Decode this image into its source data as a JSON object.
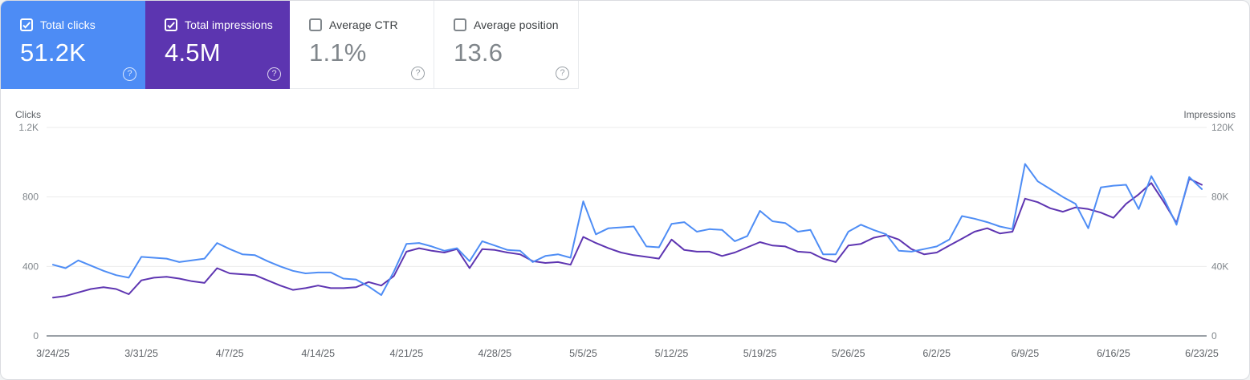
{
  "help_glyph": "?",
  "cards": [
    {
      "label": "Total clicks",
      "value": "51.2K",
      "selected": true,
      "color": "#4d8cf5"
    },
    {
      "label": "Total impressions",
      "value": "4.5M",
      "selected": true,
      "color": "#5c35b0"
    },
    {
      "label": "Average CTR",
      "value": "1.1%",
      "selected": false,
      "color": "#ffffff"
    },
    {
      "label": "Average position",
      "value": "13.6",
      "selected": false,
      "color": "#ffffff"
    }
  ],
  "chart_data": {
    "type": "line",
    "x_start": "3/24/25",
    "x_end": "6/23/25",
    "x_step": "1 day",
    "x_tick_labels": [
      "3/24/25",
      "3/31/25",
      "4/7/25",
      "4/14/25",
      "4/21/25",
      "4/28/25",
      "5/5/25",
      "5/12/25",
      "5/19/25",
      "5/26/25",
      "6/2/25",
      "6/9/25",
      "6/16/25",
      "6/23/25"
    ],
    "left_axis": {
      "title": "Clicks",
      "tick_labels": [
        "0",
        "400",
        "800",
        "1.2K"
      ],
      "max": 1200
    },
    "right_axis": {
      "title": "Impressions",
      "tick_labels": [
        "0",
        "40K",
        "80K",
        "120K"
      ],
      "max": 120000
    },
    "grid": "horizontal-only",
    "legend": "none",
    "series": [
      {
        "name": "Total clicks",
        "axis": "left",
        "color": "#4e8df5",
        "values": [
          410,
          390,
          435,
          405,
          375,
          350,
          335,
          455,
          450,
          445,
          425,
          435,
          445,
          535,
          500,
          470,
          465,
          430,
          400,
          375,
          360,
          365,
          365,
          330,
          325,
          285,
          235,
          370,
          530,
          535,
          515,
          490,
          505,
          430,
          545,
          520,
          495,
          490,
          425,
          460,
          470,
          450,
          775,
          585,
          620,
          625,
          630,
          515,
          510,
          645,
          655,
          600,
          615,
          610,
          545,
          575,
          720,
          660,
          650,
          600,
          610,
          470,
          470,
          600,
          640,
          610,
          585,
          490,
          485,
          500,
          515,
          555,
          690,
          675,
          655,
          630,
          615,
          990,
          890,
          845,
          800,
          760,
          620,
          855,
          865,
          870,
          730,
          920,
          790,
          640,
          915,
          845
        ]
      },
      {
        "name": "Total impressions",
        "axis": "right",
        "color": "#5e35b1",
        "values": [
          22000,
          23000,
          25000,
          27000,
          28000,
          27000,
          24000,
          32000,
          33500,
          34000,
          33000,
          31500,
          30500,
          39000,
          36000,
          35500,
          35000,
          32000,
          29000,
          26500,
          27500,
          29000,
          27500,
          27500,
          28000,
          31000,
          29000,
          34500,
          48500,
          50500,
          49000,
          48000,
          50000,
          39000,
          50000,
          49500,
          48000,
          47000,
          43000,
          42000,
          42500,
          41000,
          57000,
          53500,
          50500,
          48000,
          46500,
          45500,
          44500,
          55500,
          49500,
          48500,
          48500,
          46000,
          48000,
          51000,
          54000,
          52000,
          51500,
          48500,
          48000,
          44500,
          42500,
          52000,
          53000,
          56500,
          58000,
          55500,
          50000,
          47000,
          48000,
          52000,
          56000,
          60000,
          62000,
          59000,
          60000,
          79000,
          77000,
          73500,
          71500,
          74000,
          73000,
          71000,
          68000,
          76000,
          81500,
          88000,
          77000,
          65000,
          90500,
          87000
        ]
      }
    ],
    "colors": {
      "gridline": "#ebebeb",
      "baseline": "#9aa0a6",
      "tick_text": "#80868b",
      "axis_title_text": "#5f6368",
      "date_text": "#5f6368"
    }
  }
}
